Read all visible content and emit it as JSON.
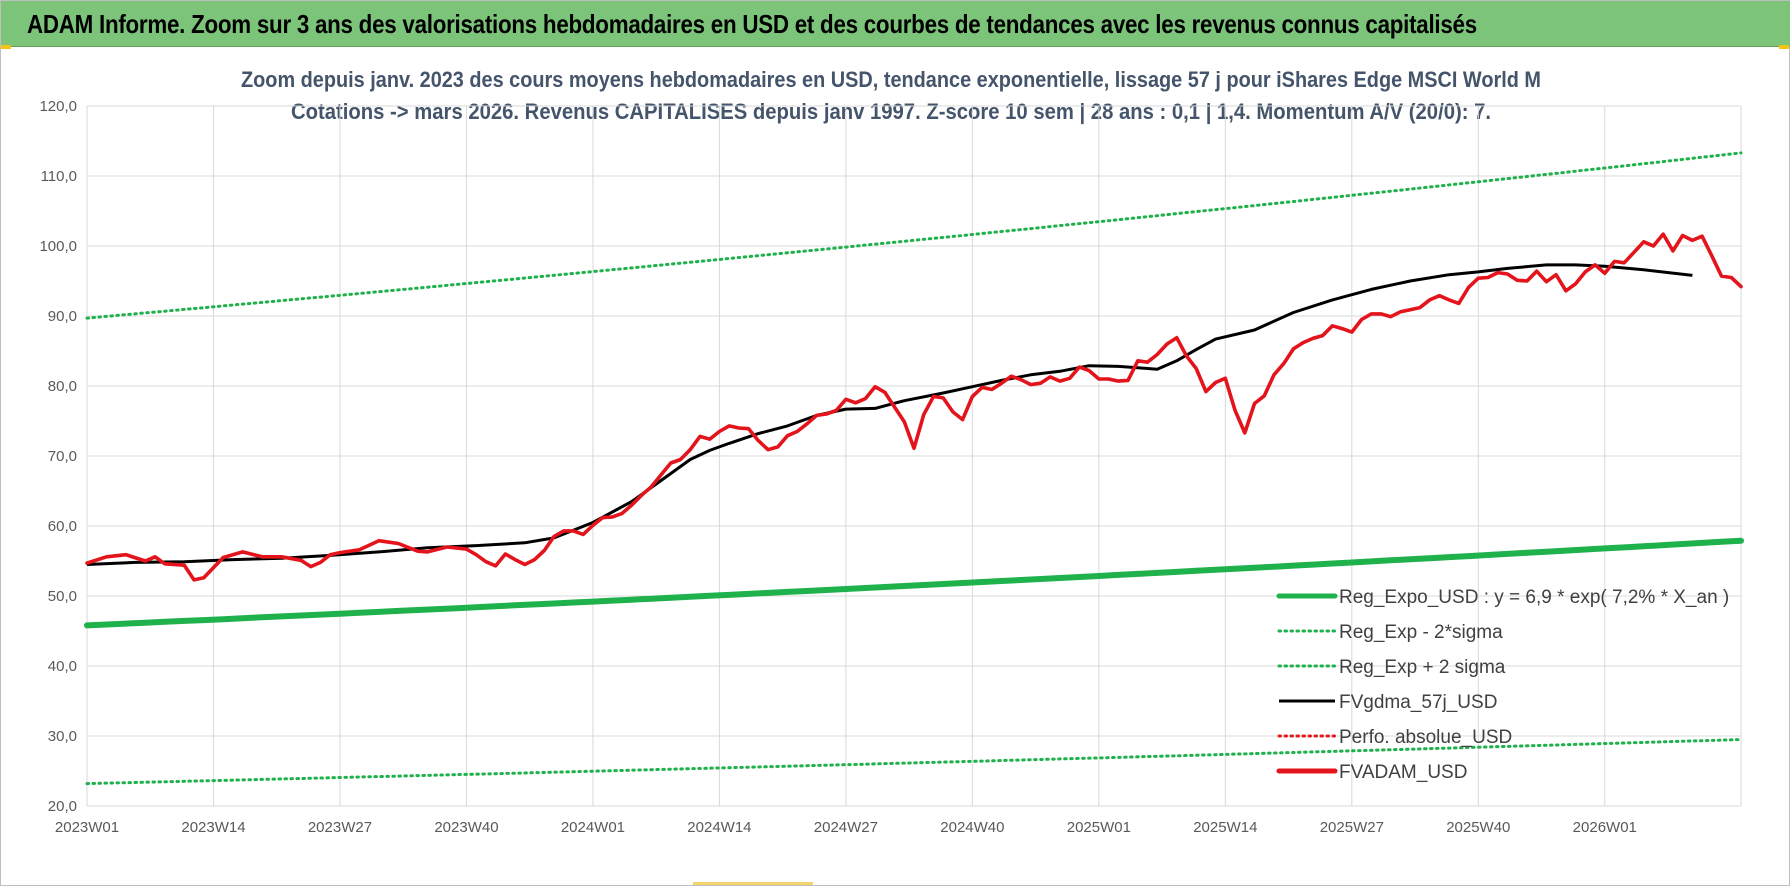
{
  "banner": {
    "title": "ADAM Informe. Zoom sur 3 ans des valorisations hebdomadaires en USD et des courbes de tendances avec les revenus connus capitalisés",
    "background": "#7cc47a"
  },
  "chart_data": {
    "type": "line",
    "title_line1": "Zoom depuis janv. 2023 des cours moyens hebdomadaires en USD, tendance exponentielle, lissage 57 j pour iShares Edge MSCI World M",
    "title_line2": "Cotations -> mars 2026. Revenus CAPITALISES depuis janv 1997. Z-score 10 sem | 28 ans : 0,1 | 1,4. Momentum A/V (20/0): 7.",
    "x_tick_labels": [
      "2023W01",
      "2023W14",
      "2023W27",
      "2023W40",
      "2024W01",
      "2024W14",
      "2024W27",
      "2024W40",
      "2025W01",
      "2025W14",
      "2025W27",
      "2025W40",
      "2026W01"
    ],
    "x_range_weeks": [
      0,
      165
    ],
    "y_tick_labels": [
      "20,0",
      "30,0",
      "40,0",
      "50,0",
      "60,0",
      "70,0",
      "80,0",
      "90,0",
      "100,0",
      "110,0",
      "120,0"
    ],
    "ylim": [
      20,
      120
    ],
    "grid": true,
    "legend_position": "bottom-right",
    "series": [
      {
        "name": "Reg_Expo_USD : y = 6,9 * exp( 7,2% *  X_an )",
        "style": "solid-thick",
        "color": "#1fb14c",
        "y_start": 45.8,
        "y_end": 57.9
      },
      {
        "name": "Reg_Exp - 2*sigma",
        "style": "dotted",
        "color": "#1fb14c",
        "y_start": 23.2,
        "y_end": 29.5
      },
      {
        "name": "Reg_Exp + 2 sigma",
        "style": "dotted",
        "color": "#1fb14c",
        "y_start": 89.7,
        "y_end": 113.3
      },
      {
        "name": "FVgdma_57j_USD",
        "style": "solid",
        "color": "#000000",
        "points": [
          [
            0,
            54.5
          ],
          [
            5,
            54.8
          ],
          [
            10,
            54.9
          ],
          [
            15,
            55.2
          ],
          [
            20,
            55.4
          ],
          [
            25,
            55.8
          ],
          [
            30,
            56.3
          ],
          [
            35,
            56.9
          ],
          [
            40,
            57.2
          ],
          [
            45,
            57.6
          ],
          [
            48,
            58.3
          ],
          [
            52,
            60.5
          ],
          [
            56,
            63.5
          ],
          [
            58,
            65.5
          ],
          [
            60,
            67.5
          ],
          [
            62,
            69.5
          ],
          [
            64,
            70.8
          ],
          [
            66,
            71.8
          ],
          [
            69,
            73.2
          ],
          [
            72,
            74.3
          ],
          [
            75,
            75.8
          ],
          [
            78,
            76.7
          ],
          [
            81,
            76.8
          ],
          [
            84,
            77.9
          ],
          [
            88,
            79.0
          ],
          [
            91,
            79.9
          ],
          [
            94,
            80.8
          ],
          [
            97,
            81.6
          ],
          [
            100,
            82.1
          ],
          [
            103,
            82.9
          ],
          [
            106,
            82.8
          ],
          [
            108,
            82.6
          ],
          [
            110,
            82.4
          ],
          [
            112,
            83.6
          ],
          [
            114,
            85.2
          ],
          [
            116,
            86.7
          ],
          [
            120,
            88.0
          ],
          [
            124,
            90.5
          ],
          [
            128,
            92.3
          ],
          [
            132,
            93.8
          ],
          [
            136,
            95.0
          ],
          [
            140,
            95.9
          ],
          [
            143,
            96.3
          ],
          [
            146,
            96.8
          ],
          [
            150,
            97.3
          ],
          [
            153,
            97.3
          ],
          [
            156,
            97.1
          ],
          [
            160,
            96.6
          ],
          [
            165,
            95.8
          ]
        ]
      },
      {
        "name": "Perfo. absolue_USD",
        "style": "dotted",
        "color": "#e31a1c"
      },
      {
        "name": "FVADAM_USD",
        "style": "solid-thick",
        "color": "#e3141b",
        "points": [
          [
            0,
            54.7
          ],
          [
            2,
            55.6
          ],
          [
            4,
            55.9
          ],
          [
            6,
            55.0
          ],
          [
            7,
            55.6
          ],
          [
            8,
            54.6
          ],
          [
            10,
            54.4
          ],
          [
            11,
            52.3
          ],
          [
            12,
            52.6
          ],
          [
            14,
            55.5
          ],
          [
            16,
            56.3
          ],
          [
            18,
            55.6
          ],
          [
            20,
            55.6
          ],
          [
            22,
            55.1
          ],
          [
            23,
            54.2
          ],
          [
            24,
            54.8
          ],
          [
            25,
            55.9
          ],
          [
            26,
            56.2
          ],
          [
            28,
            56.6
          ],
          [
            30,
            57.9
          ],
          [
            32,
            57.5
          ],
          [
            34,
            56.4
          ],
          [
            35,
            56.3
          ],
          [
            37,
            57.0
          ],
          [
            39,
            56.7
          ],
          [
            40,
            55.9
          ],
          [
            41,
            54.9
          ],
          [
            42,
            54.3
          ],
          [
            43,
            56.0
          ],
          [
            44,
            55.2
          ],
          [
            45,
            54.5
          ],
          [
            46,
            55.2
          ],
          [
            47,
            56.5
          ],
          [
            48,
            58.5
          ],
          [
            49,
            59.3
          ],
          [
            50,
            59.3
          ],
          [
            51,
            58.8
          ],
          [
            52,
            60.1
          ],
          [
            53,
            61.2
          ],
          [
            54,
            61.3
          ],
          [
            55,
            61.8
          ],
          [
            56,
            63.0
          ],
          [
            57,
            64.4
          ],
          [
            58,
            65.6
          ],
          [
            59,
            67.3
          ],
          [
            60,
            69.0
          ],
          [
            61,
            69.5
          ],
          [
            62,
            70.9
          ],
          [
            63,
            72.8
          ],
          [
            64,
            72.4
          ],
          [
            65,
            73.5
          ],
          [
            66,
            74.3
          ],
          [
            67,
            74.0
          ],
          [
            68,
            73.9
          ],
          [
            69,
            72.2
          ],
          [
            70,
            70.9
          ],
          [
            71,
            71.3
          ],
          [
            72,
            72.9
          ],
          [
            73,
            73.5
          ],
          [
            74,
            74.6
          ],
          [
            75,
            75.8
          ],
          [
            76,
            76.0
          ],
          [
            77,
            76.5
          ],
          [
            78,
            78.1
          ],
          [
            79,
            77.6
          ],
          [
            80,
            78.2
          ],
          [
            81,
            79.9
          ],
          [
            82,
            79.1
          ],
          [
            83,
            77.0
          ],
          [
            84,
            74.9
          ],
          [
            85,
            71.1
          ],
          [
            86,
            75.9
          ],
          [
            87,
            78.5
          ],
          [
            88,
            78.3
          ],
          [
            89,
            76.3
          ],
          [
            90,
            75.2
          ],
          [
            91,
            78.5
          ],
          [
            92,
            79.8
          ],
          [
            93,
            79.5
          ],
          [
            94,
            80.4
          ],
          [
            95,
            81.4
          ],
          [
            96,
            80.9
          ],
          [
            97,
            80.2
          ],
          [
            98,
            80.4
          ],
          [
            99,
            81.3
          ],
          [
            100,
            80.7
          ],
          [
            101,
            81.1
          ],
          [
            102,
            82.7
          ],
          [
            103,
            82.2
          ],
          [
            104,
            81.0
          ],
          [
            105,
            81.0
          ],
          [
            106,
            80.7
          ],
          [
            107,
            80.8
          ],
          [
            108,
            83.6
          ],
          [
            109,
            83.4
          ],
          [
            110,
            84.5
          ],
          [
            111,
            86.0
          ],
          [
            112,
            86.9
          ],
          [
            113,
            84.3
          ],
          [
            114,
            82.5
          ],
          [
            115,
            79.2
          ],
          [
            116,
            80.5
          ],
          [
            117,
            81.1
          ],
          [
            118,
            76.5
          ],
          [
            119,
            73.3
          ],
          [
            120,
            77.5
          ],
          [
            121,
            78.6
          ],
          [
            122,
            81.6
          ],
          [
            123,
            83.2
          ],
          [
            124,
            85.3
          ],
          [
            125,
            86.2
          ],
          [
            126,
            86.8
          ],
          [
            127,
            87.2
          ],
          [
            128,
            88.6
          ],
          [
            129,
            88.2
          ],
          [
            130,
            87.7
          ],
          [
            131,
            89.5
          ],
          [
            132,
            90.3
          ],
          [
            133,
            90.3
          ],
          [
            134,
            89.9
          ],
          [
            135,
            90.6
          ],
          [
            136,
            90.9
          ],
          [
            137,
            91.2
          ],
          [
            138,
            92.3
          ],
          [
            139,
            92.9
          ],
          [
            140,
            92.3
          ],
          [
            141,
            91.8
          ],
          [
            142,
            94.1
          ],
          [
            143,
            95.4
          ],
          [
            144,
            95.5
          ],
          [
            145,
            96.2
          ],
          [
            146,
            96.0
          ],
          [
            147,
            95.1
          ],
          [
            148,
            95.0
          ],
          [
            149,
            96.4
          ],
          [
            150,
            94.9
          ],
          [
            151,
            95.9
          ],
          [
            152,
            93.6
          ],
          [
            153,
            94.6
          ],
          [
            154,
            96.3
          ],
          [
            155,
            97.3
          ],
          [
            156,
            96.1
          ],
          [
            157,
            97.8
          ],
          [
            158,
            97.6
          ],
          [
            159,
            99.1
          ],
          [
            160,
            100.6
          ],
          [
            161,
            100.0
          ],
          [
            162,
            101.7
          ],
          [
            163,
            99.3
          ],
          [
            164,
            101.5
          ],
          [
            165,
            100.8
          ],
          [
            166,
            101.4
          ],
          [
            167,
            98.6
          ],
          [
            168,
            95.7
          ],
          [
            169,
            95.5
          ],
          [
            170,
            94.2
          ]
        ]
      }
    ]
  }
}
